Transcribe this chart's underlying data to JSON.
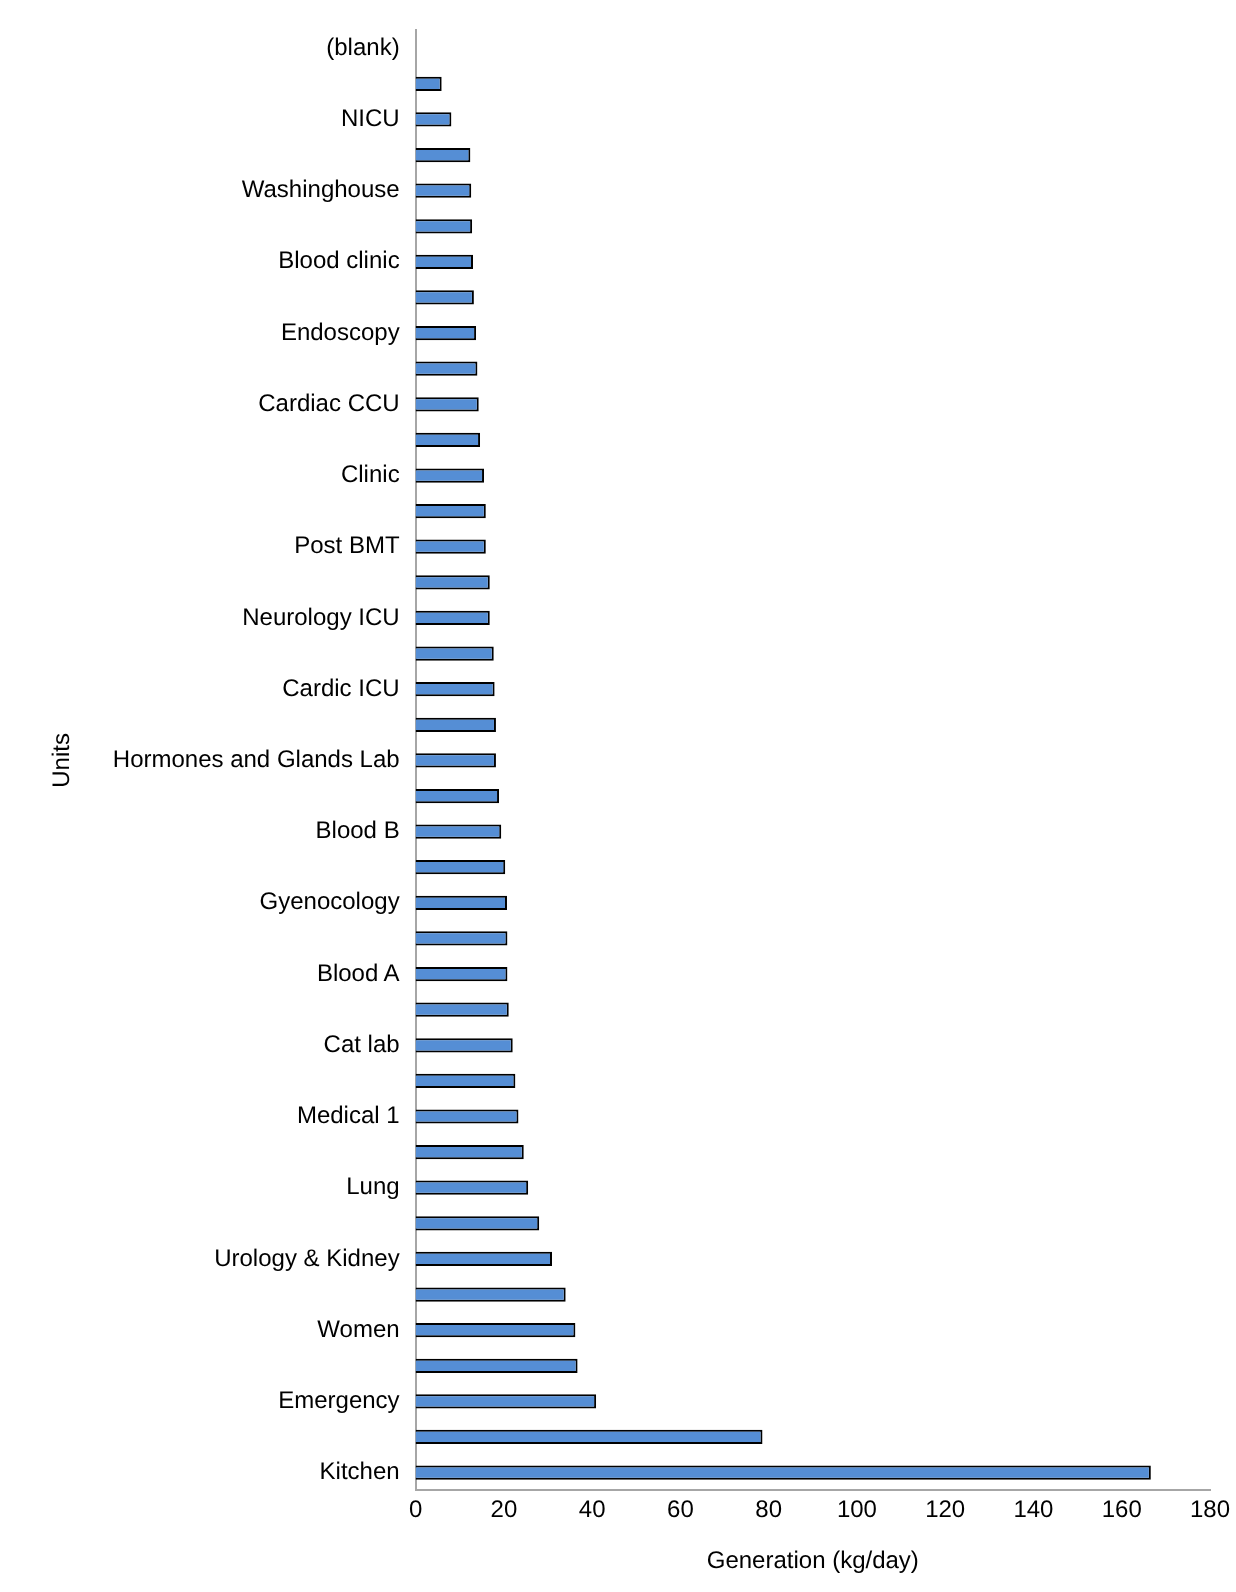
{
  "chart_data": {
    "type": "bar",
    "orientation": "horizontal",
    "xlabel": "Generation (kg/day)",
    "ylabel": "Units",
    "categories": [
      "(blank)",
      null,
      "NICU",
      null,
      "Washinghouse",
      null,
      "Blood clinic",
      null,
      "Endoscopy",
      null,
      "Cardiac CCU",
      null,
      "Clinic",
      null,
      "Post BMT",
      null,
      "Neurology ICU",
      null,
      "Cardic ICU",
      null,
      "Hormones and Glands Lab",
      null,
      "Blood B",
      null,
      "Gyenocology",
      null,
      "Blood A",
      null,
      "Cat lab",
      null,
      "Medical 1",
      null,
      "Lung",
      null,
      "Urology & Kidney",
      null,
      "Women",
      null,
      "Emergency",
      null,
      "Kitchen"
    ],
    "values": [
      null,
      5.9,
      8.1,
      12.4,
      12.6,
      12.8,
      13.0,
      13.2,
      13.7,
      14.0,
      14.3,
      14.6,
      15.5,
      15.9,
      15.9,
      16.8,
      16.8,
      17.7,
      17.9,
      18.2,
      18.2,
      18.9,
      19.4,
      20.3,
      20.7,
      20.8,
      20.8,
      21.1,
      22.0,
      22.6,
      23.3,
      24.5,
      25.5,
      28.0,
      30.9,
      34.0,
      36.2,
      36.7,
      40.9,
      78.6,
      166.6
    ],
    "color": "#558ed5",
    "xlim": [
      0,
      180
    ],
    "xticks": [
      0,
      20,
      40,
      60,
      80,
      100,
      120,
      140,
      160,
      180
    ],
    "grid": false,
    "legend": false
  }
}
